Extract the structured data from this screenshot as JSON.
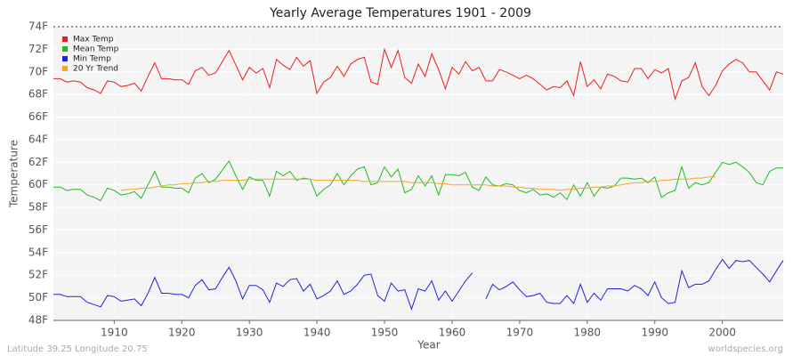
{
  "chart_data": {
    "type": "line",
    "title": "Yearly Average Temperatures 1901 - 2009",
    "x_label": "Year",
    "y_label": "Temperature",
    "footer_left": "Latitude 39.25 Longitude 20.75",
    "footer_right": "worldspecies.org",
    "legend": "top-left",
    "grid": true,
    "xlim": [
      1901,
      2009
    ],
    "ylim": [
      48,
      74
    ],
    "xticks": [
      1910,
      1920,
      1930,
      1940,
      1950,
      1960,
      1970,
      1980,
      1990,
      2000
    ],
    "yticks": [
      {
        "value": 48,
        "label": "48F"
      },
      {
        "value": 50,
        "label": "50F"
      },
      {
        "value": 52,
        "label": "52F"
      },
      {
        "value": 54,
        "label": "54F"
      },
      {
        "value": 56,
        "label": "56F"
      },
      {
        "value": 58,
        "label": "58F"
      },
      {
        "value": 60,
        "label": "60F"
      },
      {
        "value": 62,
        "label": "62F"
      },
      {
        "value": 64,
        "label": "64F"
      },
      {
        "value": 66,
        "label": "66F"
      },
      {
        "value": 68,
        "label": "68F"
      },
      {
        "value": 70,
        "label": "70F"
      },
      {
        "value": 72,
        "label": "72F"
      },
      {
        "value": 74,
        "label": "74F"
      }
    ],
    "x": [
      1901,
      1902,
      1903,
      1904,
      1905,
      1906,
      1907,
      1908,
      1909,
      1910,
      1911,
      1912,
      1913,
      1914,
      1915,
      1916,
      1917,
      1918,
      1919,
      1920,
      1921,
      1922,
      1923,
      1924,
      1925,
      1926,
      1927,
      1928,
      1929,
      1930,
      1931,
      1932,
      1933,
      1934,
      1935,
      1936,
      1937,
      1938,
      1939,
      1940,
      1941,
      1942,
      1943,
      1944,
      1945,
      1946,
      1947,
      1948,
      1949,
      1950,
      1951,
      1952,
      1953,
      1954,
      1955,
      1956,
      1957,
      1958,
      1959,
      1960,
      1961,
      1962,
      1963,
      1964,
      1965,
      1966,
      1967,
      1968,
      1969,
      1970,
      1971,
      1972,
      1973,
      1974,
      1975,
      1976,
      1977,
      1978,
      1979,
      1980,
      1981,
      1982,
      1983,
      1984,
      1985,
      1986,
      1987,
      1988,
      1989,
      1990,
      1991,
      1992,
      1993,
      1994,
      1995,
      1996,
      1997,
      1998,
      1999,
      2000,
      2001,
      2002,
      2003,
      2004,
      2005,
      2006,
      2007,
      2008,
      2009
    ],
    "series": [
      {
        "name": "Max Temp",
        "color": "#ee1c1c",
        "values": [
          69.4,
          69.4,
          69.1,
          69.2,
          69.1,
          68.6,
          68.4,
          68.1,
          69.2,
          69.1,
          68.7,
          68.8,
          69.0,
          68.3,
          69.6,
          70.8,
          69.4,
          69.4,
          69.3,
          69.3,
          68.9,
          70.1,
          70.4,
          69.7,
          69.9,
          70.9,
          71.9,
          70.6,
          69.3,
          70.4,
          69.9,
          70.3,
          68.6,
          71.1,
          70.6,
          70.2,
          71.3,
          70.5,
          71.0,
          68.1,
          69.1,
          69.5,
          70.5,
          69.6,
          70.7,
          71.1,
          71.3,
          69.1,
          68.9,
          72.0,
          70.4,
          71.9,
          69.5,
          69.0,
          70.7,
          69.6,
          71.6,
          70.2,
          68.5,
          70.4,
          69.8,
          70.9,
          70.1,
          70.4,
          69.2,
          69.2,
          70.2,
          70.0,
          69.7,
          69.4,
          69.7,
          69.4,
          68.9,
          68.4,
          68.7,
          68.6,
          69.2,
          67.9,
          70.9,
          68.7,
          69.3,
          68.5,
          69.8,
          69.6,
          69.2,
          69.1,
          70.3,
          70.3,
          69.4,
          70.2,
          69.9,
          70.3,
          67.6,
          69.2,
          69.5,
          70.8,
          68.7,
          67.9,
          68.8,
          70.1,
          70.7,
          71.1,
          70.8,
          70.0,
          70.0,
          69.2,
          68.4,
          70.0,
          69.8
        ]
      },
      {
        "name": "Mean Temp",
        "color": "#22bb22",
        "values": [
          59.8,
          59.8,
          59.5,
          59.6,
          59.6,
          59.1,
          58.9,
          58.6,
          59.7,
          59.5,
          59.1,
          59.2,
          59.4,
          58.8,
          60.0,
          61.2,
          59.8,
          59.8,
          59.7,
          59.7,
          59.3,
          60.6,
          61.0,
          60.2,
          60.5,
          61.3,
          62.1,
          60.8,
          59.6,
          60.7,
          60.4,
          60.4,
          59.0,
          61.2,
          60.8,
          61.2,
          60.4,
          60.6,
          60.5,
          59.0,
          59.6,
          60.0,
          61.0,
          60.0,
          60.8,
          61.4,
          61.6,
          60.0,
          60.2,
          61.6,
          60.7,
          61.4,
          59.3,
          59.6,
          60.8,
          59.9,
          60.8,
          59.1,
          60.9,
          60.9,
          60.8,
          61.1,
          59.8,
          59.5,
          60.7,
          60.0,
          59.9,
          60.1,
          60.0,
          59.5,
          59.3,
          59.6,
          59.1,
          59.2,
          58.9,
          59.3,
          58.7,
          60.0,
          59.0,
          60.2,
          59.0,
          59.8,
          59.7,
          59.9,
          60.6,
          60.6,
          60.5,
          60.6,
          60.2,
          60.7,
          58.9,
          59.3,
          59.5,
          61.6,
          59.7,
          60.2,
          60.0,
          60.2,
          61.1,
          62.0,
          61.8,
          62.0,
          61.6,
          61.1,
          60.2,
          60.0,
          61.2,
          61.5,
          61.5
        ]
      },
      {
        "name": "Min Temp",
        "color": "#2222dd",
        "values": [
          50.3,
          50.3,
          50.1,
          50.1,
          50.1,
          49.6,
          49.4,
          49.2,
          50.2,
          50.1,
          49.7,
          49.8,
          49.9,
          49.3,
          50.4,
          51.8,
          50.4,
          50.4,
          50.3,
          50.3,
          50.0,
          51.1,
          51.6,
          50.7,
          50.8,
          51.8,
          52.7,
          51.5,
          49.9,
          51.1,
          51.1,
          50.7,
          49.6,
          51.3,
          51.0,
          51.6,
          51.7,
          50.6,
          51.2,
          49.9,
          50.2,
          50.6,
          51.5,
          50.3,
          50.6,
          51.2,
          52.0,
          52.1,
          50.2,
          49.7,
          51.3,
          50.6,
          50.7,
          49.0,
          50.8,
          50.6,
          51.5,
          49.8,
          50.6,
          49.7,
          50.6,
          51.5,
          52.2,
          null,
          49.9,
          51.2,
          50.7,
          51.0,
          51.4,
          50.7,
          50.1,
          50.2,
          50.4,
          49.6,
          49.5,
          49.5,
          50.2,
          49.5,
          51.2,
          49.6,
          50.4,
          49.8,
          50.8,
          50.8,
          50.8,
          50.6,
          51.1,
          50.8,
          50.2,
          51.4,
          50.0,
          49.5,
          49.6,
          52.4,
          50.9,
          51.2,
          51.2,
          51.5,
          52.5,
          53.4,
          52.6,
          53.3,
          53.2,
          53.3,
          52.7,
          52.1,
          51.4,
          52.4,
          53.3
        ]
      },
      {
        "name": "20 Yr Trend",
        "color": "#f5a623",
        "values": [
          null,
          null,
          null,
          null,
          null,
          null,
          null,
          null,
          null,
          null,
          59.5,
          59.6,
          59.6,
          59.7,
          59.7,
          59.8,
          59.9,
          60.0,
          60.0,
          60.1,
          60.1,
          60.2,
          60.2,
          60.3,
          60.3,
          60.4,
          60.4,
          60.4,
          60.4,
          60.5,
          60.5,
          60.5,
          60.5,
          60.5,
          60.5,
          60.5,
          60.5,
          60.5,
          60.5,
          60.4,
          60.4,
          60.4,
          60.4,
          60.4,
          60.4,
          60.4,
          60.3,
          60.3,
          60.3,
          60.3,
          60.3,
          60.3,
          60.3,
          60.2,
          60.2,
          60.2,
          60.2,
          60.1,
          60.1,
          60.0,
          60.0,
          60.0,
          60.0,
          60.0,
          60.0,
          59.9,
          59.9,
          59.9,
          59.8,
          59.8,
          59.7,
          59.7,
          59.6,
          59.6,
          59.6,
          59.5,
          59.6,
          59.6,
          59.7,
          59.7,
          59.8,
          59.8,
          59.9,
          59.9,
          60.0,
          60.1,
          60.2,
          60.2,
          60.3,
          60.3,
          60.4,
          60.4,
          60.5,
          60.5,
          60.5,
          60.6,
          60.6,
          60.7,
          60.7,
          null,
          null,
          null,
          null,
          null,
          null,
          null,
          null,
          null,
          null
        ]
      }
    ]
  }
}
